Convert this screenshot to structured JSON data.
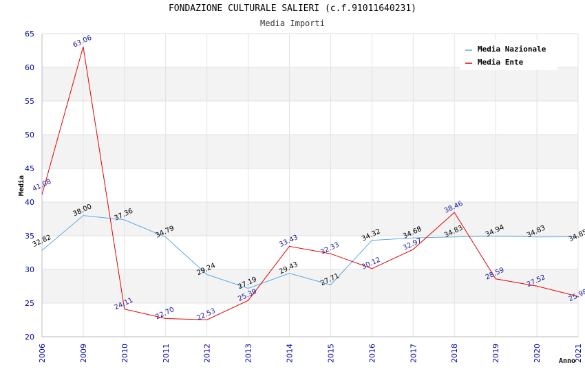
{
  "chart_data": {
    "type": "line",
    "title": "FONDAZIONE CULTURALE SALIERI (c.f.91011640231)",
    "subtitle": "Media Importi",
    "ylabel": "Media",
    "xlabel": "Anno",
    "x": [
      "2006",
      "2009",
      "2010",
      "2011",
      "2012",
      "2013",
      "2014",
      "2015",
      "2016",
      "2017",
      "2018",
      "2019",
      "2020",
      "2021"
    ],
    "ylim": [
      20,
      65
    ],
    "yticks": [
      20,
      25,
      30,
      35,
      40,
      45,
      50,
      55,
      60,
      65
    ],
    "grid": true,
    "legend_position": "top-right",
    "series": [
      {
        "name": "Media Nazionale",
        "color": "#5aaae6",
        "values": [
          32.82,
          38.0,
          37.36,
          34.79,
          29.24,
          27.19,
          29.43,
          27.71,
          34.32,
          34.68,
          34.83,
          34.94,
          34.83,
          34.85
        ],
        "labels": [
          "32.82",
          "38.00",
          "37.36",
          "34.79",
          "29.24",
          "27.19",
          "29.43",
          "27.71",
          "34.32",
          "34.68",
          "34.83",
          "34.94",
          "34.83",
          "34.85"
        ]
      },
      {
        "name": "Media Ente",
        "color": "#e60000",
        "values": [
          41.08,
          63.06,
          24.11,
          22.7,
          22.53,
          25.39,
          33.43,
          32.33,
          30.12,
          32.97,
          38.46,
          28.59,
          27.52,
          25.98
        ],
        "labels": [
          "41.08",
          "63.06",
          "24.11",
          "22.70",
          "22.53",
          "25.39",
          "33.43",
          "32.33",
          "30.12",
          "32.97",
          "38.46",
          "28.59",
          "27.52",
          "25.98"
        ]
      }
    ]
  }
}
